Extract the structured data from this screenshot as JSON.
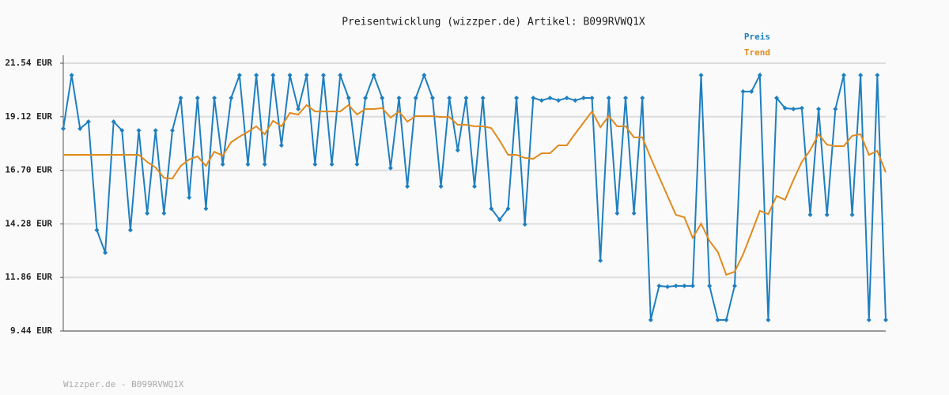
{
  "chart_data": {
    "type": "line",
    "title": "Preisentwicklung (wizzper.de) Artikel: B099RVWQ1X",
    "footer": "Wizzper.de - B099RVWQ1X",
    "ylim": [
      9.44,
      21.54
    ],
    "yticks": [
      {
        "value": 9.44,
        "label": "9.44 EUR"
      },
      {
        "value": 11.86,
        "label": "11.86 EUR"
      },
      {
        "value": 14.28,
        "label": "14.28 EUR"
      },
      {
        "value": 16.7,
        "label": "16.70 EUR"
      },
      {
        "value": 19.12,
        "label": "19.12 EUR"
      },
      {
        "value": 21.54,
        "label": "21.54 EUR"
      }
    ],
    "grid": true,
    "legend": "top-right",
    "series": [
      {
        "name": "Preis",
        "color": "#1f7fbf",
        "markers": true,
        "values": [
          18.58,
          21.0,
          18.58,
          18.9,
          14.0,
          12.98,
          18.9,
          18.5,
          14.0,
          18.5,
          14.76,
          18.5,
          14.76,
          18.5,
          19.97,
          15.47,
          19.97,
          14.97,
          19.97,
          16.97,
          19.97,
          21.0,
          16.97,
          21.0,
          16.97,
          21.0,
          17.83,
          21.0,
          19.47,
          21.0,
          16.97,
          21.0,
          16.97,
          21.0,
          19.97,
          16.97,
          19.97,
          21.0,
          19.97,
          16.8,
          19.97,
          15.97,
          19.97,
          21.0,
          19.97,
          15.97,
          19.97,
          17.61,
          19.97,
          15.97,
          19.97,
          14.97,
          14.47,
          14.97,
          19.97,
          14.26,
          19.97,
          19.86,
          19.97,
          19.86,
          19.97,
          19.86,
          19.97,
          19.97,
          12.62,
          19.97,
          14.76,
          19.97,
          14.76,
          19.97,
          9.94,
          11.48,
          11.44,
          11.48,
          11.48,
          11.48,
          21.0,
          11.48,
          9.94,
          9.94,
          11.48,
          20.26,
          20.26,
          21.0,
          9.94,
          19.97,
          19.51,
          19.47,
          19.51,
          14.69,
          19.47,
          14.69,
          19.47,
          21.0,
          14.69,
          21.0,
          9.94,
          21.0,
          9.94
        ]
      },
      {
        "name": "Trend",
        "color": "#e08a1e",
        "markers": false,
        "values": [
          17.4,
          17.4,
          17.4,
          17.4,
          17.4,
          17.4,
          17.4,
          17.4,
          17.4,
          17.4,
          17.08,
          16.83,
          16.36,
          16.33,
          16.9,
          17.19,
          17.33,
          16.9,
          17.54,
          17.36,
          17.97,
          18.22,
          18.44,
          18.69,
          18.33,
          18.94,
          18.69,
          19.29,
          19.22,
          19.65,
          19.36,
          19.36,
          19.36,
          19.36,
          19.65,
          19.22,
          19.47,
          19.47,
          19.51,
          19.08,
          19.36,
          18.9,
          19.15,
          19.15,
          19.15,
          19.11,
          19.11,
          18.76,
          18.76,
          18.69,
          18.69,
          18.61,
          18.04,
          17.4,
          17.4,
          17.26,
          17.22,
          17.47,
          17.47,
          17.83,
          17.83,
          18.36,
          18.86,
          19.36,
          18.65,
          19.15,
          18.69,
          18.69,
          18.19,
          18.19,
          17.26,
          16.4,
          15.54,
          14.69,
          14.58,
          13.65,
          14.29,
          13.51,
          13.01,
          11.98,
          12.12,
          12.9,
          13.87,
          14.87,
          14.72,
          15.54,
          15.37,
          16.26,
          17.08,
          17.61,
          18.33,
          17.86,
          17.79,
          17.79,
          18.26,
          18.33,
          17.4,
          17.58,
          16.61
        ]
      }
    ]
  }
}
